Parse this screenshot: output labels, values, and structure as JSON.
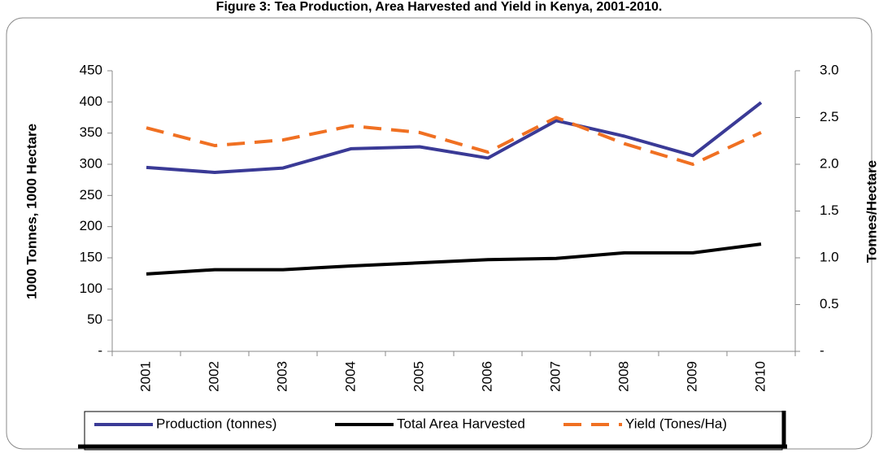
{
  "chart_data": {
    "type": "line",
    "title": "Figure 3: Tea Production, Area Harvested and Yield in Kenya, 2001-2010.",
    "ylabel": "1000 Tonnes, 1000 Hectare",
    "y2label": "Tonnes/Hectare",
    "categories": [
      "2001",
      "2002",
      "2003",
      "2004",
      "2005",
      "2006",
      "2007",
      "2008",
      "2009",
      "2010"
    ],
    "series": [
      {
        "name": "Production (tonnes)",
        "color": "#3a3a96",
        "values": [
          295,
          287,
          294,
          325,
          328,
          310,
          370,
          345,
          314,
          399
        ]
      },
      {
        "name": "Total Area Harvested",
        "color": "#000000",
        "values": [
          124,
          131,
          131,
          137,
          142,
          147,
          149,
          158,
          158,
          172
        ]
      },
      {
        "name": "Yield (Tones/Ha)",
        "color": "#f07022",
        "dashed": true,
        "axis": "y2",
        "values": [
          2.39,
          2.2,
          2.26,
          2.41,
          2.34,
          2.13,
          2.5,
          2.22,
          2.0,
          2.34
        ]
      }
    ],
    "ylim": [
      0,
      450
    ],
    "yticks": [
      {
        "value": 0,
        "label": "-"
      },
      50,
      100,
      150,
      200,
      250,
      300,
      350,
      400,
      450
    ],
    "y2lim": [
      0,
      3
    ],
    "y2ticks": [
      {
        "value": 0,
        "label": "-"
      },
      0.5,
      {
        "value": 1,
        "label": "1.0"
      },
      1.5,
      {
        "value": 2,
        "label": "2.0"
      },
      2.5,
      {
        "value": 3,
        "label": "3.0"
      }
    ],
    "legend": "bottom",
    "grid": false
  }
}
